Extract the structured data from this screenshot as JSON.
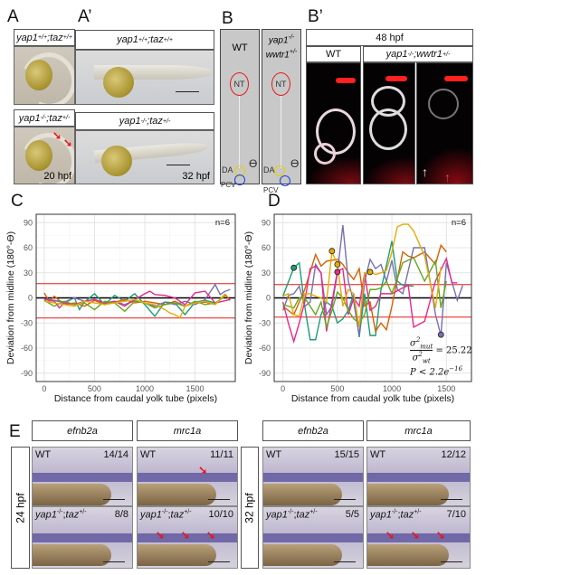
{
  "panels": {
    "A": {
      "label": "A",
      "top": {
        "g1": "yap1",
        "s1": "+/+",
        "g2": "taz",
        "s2": "+/+"
      },
      "bottom": {
        "g1": "yap1",
        "s1": "-/-",
        "g2": "taz",
        "s2": "+/-"
      },
      "stage": "20 hpf"
    },
    "A2": {
      "label": "A’",
      "top": {
        "g1": "yap1",
        "s1": "+/+",
        "g2": "taz",
        "s2": "+/+"
      },
      "bottom": {
        "g1": "yap1",
        "s1": "-/-",
        "g2": "taz",
        "s2": "+/-"
      },
      "stage": "32 hpf"
    },
    "B": {
      "label": "B",
      "wt": "WT",
      "mut_line1": {
        "g": "yap1",
        "s": "-/-"
      },
      "mut_line2": {
        "g": "wwtr1",
        "s": "+/-"
      },
      "nt": "NT",
      "da": "DA",
      "pcv": "PCV",
      "theta": "ϴ"
    },
    "B2": {
      "label": "B’",
      "title": "48 hpf",
      "wt": "WT",
      "mut": {
        "g1": "yap1",
        "s1": "-/-",
        "g2": "wwtr1",
        "s2": "+/-"
      }
    },
    "C": {
      "label": "C"
    },
    "D": {
      "label": "D",
      "formula": {
        "num": "σ",
        "num_sub": "mut",
        "den": "σ",
        "den_sub": "wt",
        "sq": "2",
        "eq": "= 25.22",
        "p": "P < 2.2e",
        "p_exp": "−16"
      }
    },
    "E": {
      "label": "E",
      "headers": [
        "efnb2a",
        "mrc1a",
        "efnb2a",
        "mrc1a"
      ],
      "stages": [
        "24 hpf",
        "32 hpf"
      ],
      "cells": [
        {
          "geno": "WT",
          "count": "14/14"
        },
        {
          "geno": "WT",
          "count": "11/11"
        },
        {
          "geno": "WT",
          "count": "15/15"
        },
        {
          "geno": "WT",
          "count": "12/12"
        },
        {
          "g1": "yap1",
          "s1": "-/-",
          "g2": "taz",
          "s2": "+/-",
          "count": "8/8"
        },
        {
          "g1": "yap1",
          "s1": "-/-",
          "g2": "taz",
          "s2": "+/-",
          "count": "10/10"
        },
        {
          "g1": "yap1",
          "s1": "-/-",
          "g2": "taz",
          "s2": "+/-",
          "count": "5/5"
        },
        {
          "g1": "yap1",
          "s1": "-/-",
          "g2": "taz",
          "s2": "+/-",
          "count": "7/10"
        }
      ]
    }
  },
  "chart_data": [
    {
      "type": "line",
      "panel": "C",
      "xlabel": "Distance from caudal yolk tube (pixels)",
      "ylabel": "Deviation from midline (180°-ϴ)",
      "annotation": "n=6",
      "xlim": [
        -80,
        1900
      ],
      "ylim": [
        -100,
        100
      ],
      "xticks": [
        0,
        500,
        1000,
        1500
      ],
      "yticks": [
        -90,
        -60,
        -30,
        0,
        30,
        60,
        90
      ],
      "grid": true,
      "hlines": [
        {
          "y": 0,
          "color": "#000000"
        },
        {
          "y": 17,
          "color": "#e41a1c"
        },
        {
          "y": -24,
          "color": "#e41a1c"
        }
      ],
      "series": [
        {
          "color": "#1b9e77",
          "x": [
            0,
            100,
            200,
            300,
            350,
            400,
            500,
            600,
            700,
            800,
            900,
            1000,
            1100,
            1200,
            1300,
            1400,
            1500,
            1600,
            1700
          ],
          "y": [
            -2,
            -3,
            -5,
            0,
            -14,
            -5,
            5,
            -8,
            3,
            -4,
            5,
            -8,
            -22,
            -5,
            -6,
            -20,
            -5,
            -3,
            -6
          ]
        },
        {
          "color": "#d95f02",
          "x": [
            0,
            50,
            100,
            200,
            300,
            400,
            500,
            600,
            700,
            800,
            900,
            1000,
            1100,
            1200,
            1300,
            1400,
            1500,
            1600,
            1700,
            1800,
            1850
          ],
          "y": [
            6,
            -4,
            2,
            -8,
            -6,
            -10,
            -3,
            -8,
            -5,
            -2,
            -6,
            -4,
            -6,
            -8,
            -4,
            -10,
            -6,
            -5,
            -8,
            4,
            -3
          ]
        },
        {
          "color": "#7570b3",
          "x": [
            0,
            100,
            200,
            300,
            400,
            500,
            600,
            700,
            800,
            900,
            1000,
            1100,
            1200,
            1300,
            1400,
            1500,
            1600,
            1700,
            1750,
            1800,
            1850
          ],
          "y": [
            -1,
            -3,
            -6,
            0,
            -4,
            -2,
            -6,
            -4,
            -8,
            -3,
            -6,
            -10,
            -5,
            -8,
            -4,
            -8,
            -2,
            16,
            4,
            8,
            10
          ]
        },
        {
          "color": "#e7298a",
          "x": [
            0,
            100,
            150,
            200,
            300,
            400,
            500,
            600,
            700,
            800,
            900,
            1000,
            1050,
            1100,
            1200,
            1300,
            1400,
            1500,
            1600,
            1700,
            1850
          ],
          "y": [
            -2,
            -4,
            -12,
            -6,
            -8,
            -4,
            -2,
            -6,
            -4,
            -10,
            -2,
            5,
            8,
            4,
            3,
            0,
            -8,
            6,
            8,
            -6,
            -2
          ]
        },
        {
          "color": "#66a61e",
          "x": [
            0,
            100,
            200,
            300,
            400,
            500,
            600,
            700,
            800,
            900,
            1000,
            1100,
            1200,
            1300,
            1400,
            1500,
            1600,
            1700,
            1800
          ],
          "y": [
            -3,
            -10,
            -4,
            -8,
            -6,
            -14,
            -4,
            -6,
            -16,
            -4,
            -6,
            -12,
            -8,
            -6,
            -10,
            -4,
            -8,
            -6,
            2
          ]
        },
        {
          "color": "#e6ab02",
          "x": [
            0,
            100,
            200,
            300,
            400,
            500,
            600,
            700,
            800,
            900,
            1000,
            1100,
            1200,
            1250,
            1300,
            1350,
            1400,
            1500,
            1600,
            1700,
            1800
          ],
          "y": [
            -4,
            -6,
            -8,
            -10,
            -4,
            -6,
            -8,
            -6,
            -4,
            -2,
            -6,
            -8,
            -14,
            -18,
            -20,
            -24,
            -10,
            -6,
            -4,
            -8,
            5
          ]
        }
      ]
    },
    {
      "type": "line",
      "panel": "D",
      "xlabel": "Distance from caudal yolk tube (pixels)",
      "ylabel": "Deviation from midline (180°-ϴ)",
      "annotation": "n=6",
      "xlim": [
        -80,
        1730
      ],
      "ylim": [
        -100,
        100
      ],
      "xticks": [
        0,
        500,
        1000,
        1500
      ],
      "yticks": [
        -90,
        -60,
        -30,
        0,
        30,
        60,
        90
      ],
      "grid": true,
      "hlines": [
        {
          "y": 0,
          "color": "#000000"
        },
        {
          "y": 16,
          "color": "#e41a1c"
        },
        {
          "y": -23,
          "color": "#e41a1c"
        }
      ],
      "series": [
        {
          "color": "#1b9e77",
          "x": [
            0,
            100,
            150,
            200,
            250,
            300,
            350,
            400,
            450,
            500,
            550,
            600,
            650,
            700,
            750,
            800,
            850,
            900,
            1000,
            1050,
            1100,
            1200
          ],
          "y": [
            2,
            36,
            42,
            -10,
            -50,
            -50,
            -20,
            -5,
            -10,
            -30,
            -25,
            -15,
            5,
            -47,
            5,
            -45,
            -45,
            10,
            68,
            20,
            15,
            14
          ]
        },
        {
          "color": "#d95f02",
          "x": [
            0,
            100,
            200,
            300,
            350,
            400,
            450,
            500,
            550,
            600,
            650,
            700,
            750,
            800,
            850,
            900,
            950,
            1000,
            1100,
            1150,
            1200,
            1300,
            1400,
            1450,
            1500
          ],
          "y": [
            -10,
            -20,
            10,
            52,
            38,
            44,
            45,
            46,
            40,
            30,
            22,
            35,
            -10,
            -5,
            -40,
            -30,
            -38,
            -10,
            55,
            50,
            48,
            55,
            40,
            63,
            55
          ]
        },
        {
          "color": "#7570b3",
          "x": [
            0,
            50,
            100,
            150,
            200,
            250,
            300,
            350,
            400,
            450,
            500,
            550,
            600,
            650,
            700,
            750,
            800,
            850,
            900,
            950,
            1000,
            1050,
            1100,
            1200,
            1300,
            1400,
            1450,
            1500,
            1600,
            1650
          ],
          "y": [
            -15,
            3,
            5,
            14,
            -10,
            -5,
            40,
            30,
            -20,
            -10,
            30,
            87,
            20,
            -5,
            -45,
            20,
            46,
            35,
            40,
            20,
            45,
            10,
            5,
            60,
            60,
            -20,
            -45,
            42,
            -3,
            15
          ]
        },
        {
          "color": "#e7298a",
          "x": [
            0,
            50,
            100,
            150,
            200,
            250,
            300,
            350,
            400,
            450,
            500,
            550,
            600,
            650,
            700,
            750,
            800,
            850,
            900,
            1000,
            1100,
            1150,
            1200,
            1300,
            1400,
            1500,
            1550,
            1600
          ],
          "y": [
            -5,
            -30,
            -52,
            -30,
            -5,
            35,
            38,
            30,
            -40,
            -5,
            32,
            35,
            -20,
            0,
            -10,
            30,
            -15,
            -10,
            5,
            5,
            12,
            15,
            -35,
            -28,
            20,
            47,
            18,
            18
          ]
        },
        {
          "color": "#66a61e",
          "x": [
            0,
            50,
            100,
            150,
            200,
            250,
            300,
            350,
            400,
            450,
            500,
            550,
            600,
            650,
            700,
            750,
            800,
            850,
            900,
            950,
            1000,
            1100,
            1200,
            1300,
            1400,
            1450,
            1500
          ],
          "y": [
            -8,
            -10,
            -12,
            0,
            0,
            -10,
            -20,
            -5,
            -35,
            -15,
            7,
            0,
            -15,
            -25,
            -30,
            -20,
            10,
            10,
            12,
            20,
            5,
            42,
            48,
            20,
            44,
            -12,
            20
          ]
        },
        {
          "color": "#e6ab02",
          "x": [
            0,
            50,
            100,
            150,
            200,
            250,
            300,
            350,
            400,
            450,
            500,
            550,
            600,
            650,
            700,
            750,
            800,
            850,
            900,
            950,
            1000,
            1050,
            1100,
            1150,
            1200,
            1300,
            1400,
            1450
          ],
          "y": [
            2,
            5,
            -20,
            -22,
            5,
            5,
            2,
            0,
            -5,
            55,
            40,
            -10,
            10,
            5,
            -35,
            30,
            31,
            28,
            30,
            33,
            55,
            85,
            88,
            88,
            80,
            50,
            -12,
            37
          ]
        }
      ],
      "markers": [
        {
          "x": 100,
          "y": 36,
          "color": "#1b9e77"
        },
        {
          "x": 450,
          "y": 56,
          "color": "#e6ab02"
        },
        {
          "x": 500,
          "y": 40,
          "color": "#e6ab02"
        },
        {
          "x": 500,
          "y": 31,
          "color": "#e7298a"
        },
        {
          "x": 800,
          "y": 31,
          "color": "#e6ab02"
        },
        {
          "x": 1450,
          "y": -44,
          "color": "#7570b3"
        }
      ]
    }
  ]
}
